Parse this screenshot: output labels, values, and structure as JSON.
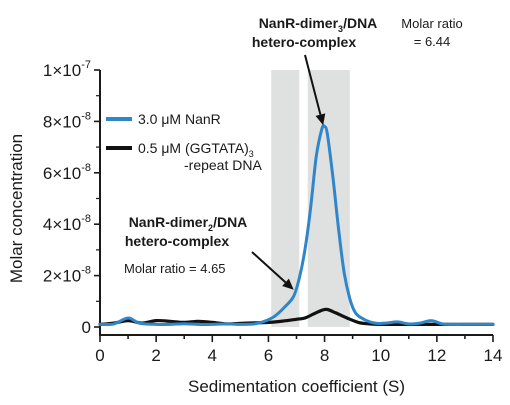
{
  "chart_data": {
    "type": "line",
    "xlabel": "Sedimentation coefficient (S)",
    "ylabel": "Molar concentration",
    "xlim": [
      0,
      14
    ],
    "ylim": [
      0,
      1e-07
    ],
    "x_ticks": [
      "0",
      "2",
      "4",
      "6",
      "8",
      "10",
      "12",
      "14"
    ],
    "y_ticks": [
      {
        "value": 0,
        "mantissa": "0",
        "exp": ""
      },
      {
        "value": 2e-08,
        "mantissa": "2×10",
        "exp": "-8"
      },
      {
        "value": 4e-08,
        "mantissa": "4×10",
        "exp": "-8"
      },
      {
        "value": 6e-08,
        "mantissa": "6×10",
        "exp": "-8"
      },
      {
        "value": 8e-08,
        "mantissa": "8×10",
        "exp": "-8"
      },
      {
        "value": 1e-07,
        "mantissa": "1×10",
        "exp": "-7"
      }
    ],
    "shaded_regions": [
      [
        6.1,
        7.1
      ],
      [
        7.4,
        8.9
      ]
    ],
    "legend_placement": "upper-left",
    "series": [
      {
        "name": "3.0 μM NanR",
        "color": "#2f86c9",
        "points": [
          [
            0,
            1e-09
          ],
          [
            0.5,
            1.2e-09
          ],
          [
            1.0,
            3.5e-09
          ],
          [
            1.4,
            1.5e-09
          ],
          [
            2.0,
            1e-09
          ],
          [
            2.5,
            1e-09
          ],
          [
            3.0,
            1.3e-09
          ],
          [
            3.5,
            1e-09
          ],
          [
            4.0,
            1e-09
          ],
          [
            4.5,
            1.2e-09
          ],
          [
            5.0,
            1e-09
          ],
          [
            5.5,
            1.2e-09
          ],
          [
            5.8,
            2e-09
          ],
          [
            6.2,
            4e-09
          ],
          [
            6.6,
            8e-09
          ],
          [
            6.9,
            1.2e-08
          ],
          [
            7.1,
            1.9e-08
          ],
          [
            7.3,
            3e-08
          ],
          [
            7.5,
            4.6e-08
          ],
          [
            7.7,
            6.6e-08
          ],
          [
            7.9,
            7.7e-08
          ],
          [
            8.0,
            7.8e-08
          ],
          [
            8.1,
            7.5e-08
          ],
          [
            8.3,
            5.8e-08
          ],
          [
            8.5,
            3.8e-08
          ],
          [
            8.7,
            2.1e-08
          ],
          [
            8.9,
            1.1e-08
          ],
          [
            9.1,
            5.5e-09
          ],
          [
            9.4,
            3e-09
          ],
          [
            9.8,
            1.5e-09
          ],
          [
            10.2,
            1.5e-09
          ],
          [
            10.6,
            2e-09
          ],
          [
            11.0,
            1.2e-09
          ],
          [
            11.4,
            1.5e-09
          ],
          [
            11.8,
            2.5e-09
          ],
          [
            12.2,
            1.2e-09
          ],
          [
            12.6,
            1e-09
          ],
          [
            13.0,
            1e-09
          ],
          [
            13.5,
            1e-09
          ],
          [
            14.0,
            1e-09
          ]
        ]
      },
      {
        "name": "0.5 μM (GGTATA)₃ -repeat DNA",
        "name_line1": "0.5 μM (GGTATA)",
        "name_sub": "3",
        "name_line2": "-repeat DNA",
        "color": "#111111",
        "points": [
          [
            0,
            1e-09
          ],
          [
            0.5,
            1.5e-09
          ],
          [
            1.0,
            2.5e-09
          ],
          [
            1.5,
            1.5e-09
          ],
          [
            2.0,
            2.5e-09
          ],
          [
            2.5,
            2.2e-09
          ],
          [
            3.0,
            1.8e-09
          ],
          [
            3.5,
            2.2e-09
          ],
          [
            4.0,
            1.8e-09
          ],
          [
            4.5,
            1.2e-09
          ],
          [
            5.0,
            1.4e-09
          ],
          [
            5.5,
            1.6e-09
          ],
          [
            6.0,
            1.8e-09
          ],
          [
            6.5,
            2.3e-09
          ],
          [
            7.0,
            3e-09
          ],
          [
            7.3,
            3.5e-09
          ],
          [
            7.6,
            5e-09
          ],
          [
            7.9,
            6.5e-09
          ],
          [
            8.1,
            6.8e-09
          ],
          [
            8.4,
            5.5e-09
          ],
          [
            8.8,
            3.5e-09
          ],
          [
            9.2,
            1.8e-09
          ],
          [
            9.6,
            1.2e-09
          ],
          [
            10.0,
            1e-09
          ],
          [
            10.5,
            1e-09
          ],
          [
            11.0,
            1e-09
          ],
          [
            12.0,
            1e-09
          ],
          [
            13.0,
            1e-09
          ],
          [
            14.0,
            1e-09
          ]
        ]
      }
    ],
    "annotations": [
      {
        "key": "trimer",
        "title_line1": "NanR-dimer",
        "title_sub": "3",
        "title_line1_end": "/DNA",
        "title_line2": "hetero-complex",
        "ratio_line1": "Molar ratio",
        "ratio_line2": "= 6.44",
        "arrow_to": [
          7.95,
          7.85e-08
        ]
      },
      {
        "key": "dimer",
        "title_line1": "NanR-dimer",
        "title_sub": "2",
        "title_line1_end": "/DNA",
        "title_line2": "hetero-complex",
        "ratio_line1": "Molar ratio = 4.65",
        "arrow_to": [
          6.9,
          1.45e-08
        ]
      }
    ]
  }
}
